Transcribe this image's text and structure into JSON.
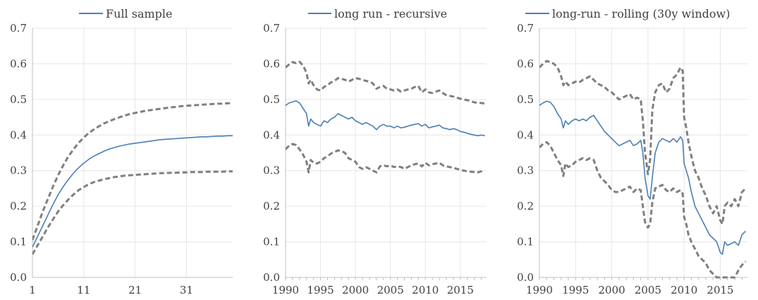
{
  "colors": {
    "estimate": "#4a7fb5",
    "band": "#7f7f7f",
    "grid": "#e6e6e6",
    "axis": "#bfbfbf",
    "text": "#404040"
  },
  "chart_data": [
    {
      "type": "line",
      "title": "",
      "legend": "Full sample",
      "x_kind": "horizon",
      "x_ticks": [
        "1",
        "11",
        "21",
        "31"
      ],
      "x": [
        1,
        2,
        3,
        4,
        5,
        6,
        7,
        8,
        9,
        10,
        11,
        12,
        13,
        14,
        15,
        16,
        17,
        18,
        19,
        20,
        21,
        22,
        23,
        24,
        25,
        26,
        27,
        28,
        29,
        30,
        31,
        32,
        33,
        34,
        35,
        36,
        37,
        38,
        39,
        40
      ],
      "xlim": [
        1,
        40
      ],
      "ylim": [
        0,
        0.7
      ],
      "y_ticks": [
        "0.0",
        "0.1",
        "0.2",
        "0.3",
        "0.4",
        "0.5",
        "0.6",
        "0.7"
      ],
      "grid": true,
      "series": [
        {
          "name": "Full sample",
          "role": "estimate",
          "values": [
            0.085,
            0.115,
            0.145,
            0.175,
            0.205,
            0.232,
            0.255,
            0.275,
            0.293,
            0.308,
            0.321,
            0.332,
            0.341,
            0.348,
            0.355,
            0.361,
            0.365,
            0.369,
            0.372,
            0.375,
            0.377,
            0.379,
            0.381,
            0.383,
            0.385,
            0.387,
            0.388,
            0.389,
            0.39,
            0.391,
            0.392,
            0.393,
            0.394,
            0.395,
            0.395,
            0.396,
            0.397,
            0.397,
            0.398,
            0.398
          ]
        },
        {
          "role": "upper",
          "values": [
            0.105,
            0.145,
            0.185,
            0.22,
            0.255,
            0.287,
            0.315,
            0.34,
            0.36,
            0.378,
            0.393,
            0.406,
            0.416,
            0.425,
            0.433,
            0.439,
            0.445,
            0.45,
            0.455,
            0.459,
            0.462,
            0.465,
            0.468,
            0.47,
            0.472,
            0.474,
            0.476,
            0.478,
            0.479,
            0.481,
            0.482,
            0.483,
            0.484,
            0.485,
            0.486,
            0.487,
            0.488,
            0.488,
            0.489,
            0.49
          ]
        },
        {
          "role": "lower",
          "values": [
            0.065,
            0.09,
            0.115,
            0.14,
            0.163,
            0.185,
            0.203,
            0.219,
            0.233,
            0.245,
            0.254,
            0.262,
            0.268,
            0.272,
            0.276,
            0.279,
            0.282,
            0.284,
            0.286,
            0.287,
            0.288,
            0.289,
            0.29,
            0.291,
            0.292,
            0.293,
            0.293,
            0.294,
            0.294,
            0.295,
            0.295,
            0.296,
            0.296,
            0.296,
            0.297,
            0.297,
            0.297,
            0.297,
            0.298,
            0.298
          ]
        }
      ]
    },
    {
      "type": "line",
      "title": "",
      "legend": "long run - recursive",
      "x_kind": "year",
      "x_ticks": [
        "1990",
        "1995",
        "2000",
        "2005",
        "2010",
        "2015"
      ],
      "x": [
        1990.0,
        1990.5,
        1991.0,
        1991.5,
        1992.0,
        1992.5,
        1993.0,
        1993.3,
        1993.6,
        1994.0,
        1994.5,
        1995.0,
        1995.5,
        1996.0,
        1996.5,
        1997.0,
        1997.5,
        1998.0,
        1998.5,
        1999.0,
        1999.5,
        2000.0,
        2000.5,
        2001.0,
        2001.5,
        2002.0,
        2002.5,
        2003.0,
        2003.5,
        2004.0,
        2004.5,
        2005.0,
        2005.5,
        2006.0,
        2006.5,
        2007.0,
        2007.5,
        2008.0,
        2008.5,
        2009.0,
        2009.5,
        2010.0,
        2010.5,
        2011.0,
        2011.5,
        2012.0,
        2012.5,
        2013.0,
        2013.5,
        2014.0,
        2014.5,
        2015.0,
        2015.5,
        2016.0,
        2016.5,
        2017.0,
        2017.5,
        2018.0,
        2018.5
      ],
      "xlim": [
        1990,
        2018.75
      ],
      "ylim": [
        0,
        0.7
      ],
      "y_ticks": [
        "0.0",
        "0.1",
        "0.2",
        "0.3",
        "0.4",
        "0.5",
        "0.6",
        "0.7"
      ],
      "grid": true,
      "series": [
        {
          "name": "long run - recursive",
          "role": "estimate",
          "values": [
            0.483,
            0.49,
            0.493,
            0.496,
            0.49,
            0.475,
            0.46,
            0.425,
            0.445,
            0.435,
            0.43,
            0.425,
            0.44,
            0.435,
            0.445,
            0.45,
            0.46,
            0.455,
            0.45,
            0.445,
            0.45,
            0.44,
            0.435,
            0.43,
            0.435,
            0.43,
            0.425,
            0.415,
            0.425,
            0.43,
            0.425,
            0.425,
            0.42,
            0.425,
            0.42,
            0.422,
            0.425,
            0.428,
            0.43,
            0.432,
            0.425,
            0.43,
            0.42,
            0.423,
            0.425,
            0.428,
            0.42,
            0.418,
            0.415,
            0.418,
            0.415,
            0.41,
            0.408,
            0.405,
            0.402,
            0.4,
            0.398,
            0.4,
            0.398
          ]
        },
        {
          "role": "upper",
          "values": [
            0.59,
            0.598,
            0.605,
            0.602,
            0.606,
            0.595,
            0.575,
            0.545,
            0.555,
            0.54,
            0.528,
            0.525,
            0.535,
            0.54,
            0.548,
            0.552,
            0.56,
            0.558,
            0.555,
            0.55,
            0.555,
            0.56,
            0.558,
            0.555,
            0.552,
            0.55,
            0.545,
            0.53,
            0.535,
            0.538,
            0.53,
            0.528,
            0.525,
            0.528,
            0.522,
            0.525,
            0.528,
            0.53,
            0.535,
            0.538,
            0.52,
            0.528,
            0.52,
            0.518,
            0.522,
            0.525,
            0.518,
            0.512,
            0.51,
            0.508,
            0.505,
            0.502,
            0.5,
            0.498,
            0.495,
            0.492,
            0.49,
            0.49,
            0.488
          ]
        },
        {
          "role": "lower",
          "values": [
            0.36,
            0.37,
            0.375,
            0.372,
            0.36,
            0.345,
            0.325,
            0.295,
            0.33,
            0.322,
            0.32,
            0.325,
            0.335,
            0.34,
            0.348,
            0.352,
            0.357,
            0.355,
            0.35,
            0.335,
            0.33,
            0.325,
            0.31,
            0.305,
            0.31,
            0.305,
            0.3,
            0.295,
            0.312,
            0.315,
            0.312,
            0.315,
            0.31,
            0.312,
            0.31,
            0.305,
            0.31,
            0.315,
            0.318,
            0.32,
            0.312,
            0.322,
            0.315,
            0.318,
            0.32,
            0.322,
            0.315,
            0.312,
            0.31,
            0.308,
            0.305,
            0.302,
            0.3,
            0.298,
            0.297,
            0.296,
            0.295,
            0.298,
            0.3
          ]
        }
      ]
    },
    {
      "type": "line",
      "title": "",
      "legend": "long-run - rolling (30y window)",
      "x_kind": "year",
      "x_ticks": [
        "1990",
        "1995",
        "2000",
        "2005",
        "2010",
        "2015"
      ],
      "x": [
        1990.0,
        1990.5,
        1991.0,
        1991.5,
        1992.0,
        1992.5,
        1993.0,
        1993.3,
        1993.6,
        1994.0,
        1994.5,
        1995.0,
        1995.5,
        1996.0,
        1996.5,
        1997.0,
        1997.5,
        1998.0,
        1998.5,
        1999.0,
        1999.5,
        2000.0,
        2000.5,
        2001.0,
        2001.5,
        2002.0,
        2002.5,
        2003.0,
        2003.5,
        2004.0,
        2004.3,
        2004.6,
        2005.0,
        2005.3,
        2005.6,
        2006.0,
        2006.5,
        2007.0,
        2007.5,
        2008.0,
        2008.5,
        2009.0,
        2009.5,
        2009.8,
        2010.0,
        2010.3,
        2010.6,
        2011.0,
        2011.5,
        2012.0,
        2012.5,
        2013.0,
        2013.5,
        2014.0,
        2014.5,
        2015.0,
        2015.3,
        2015.6,
        2016.0,
        2016.5,
        2017.0,
        2017.5,
        2018.0,
        2018.5
      ],
      "xlim": [
        1990,
        2018.75
      ],
      "ylim": [
        0,
        0.7
      ],
      "y_ticks": [
        "0.0",
        "0.1",
        "0.2",
        "0.3",
        "0.4",
        "0.5",
        "0.6",
        "0.7"
      ],
      "grid": true,
      "series": [
        {
          "name": "long-run - rolling (30y window)",
          "role": "estimate",
          "values": [
            0.483,
            0.49,
            0.495,
            0.492,
            0.48,
            0.46,
            0.445,
            0.42,
            0.44,
            0.43,
            0.44,
            0.445,
            0.44,
            0.445,
            0.44,
            0.45,
            0.455,
            0.44,
            0.425,
            0.41,
            0.4,
            0.39,
            0.38,
            0.37,
            0.375,
            0.38,
            0.385,
            0.37,
            0.375,
            0.385,
            0.35,
            0.28,
            0.23,
            0.22,
            0.28,
            0.35,
            0.38,
            0.39,
            0.385,
            0.38,
            0.39,
            0.38,
            0.395,
            0.385,
            0.32,
            0.3,
            0.28,
            0.24,
            0.2,
            0.18,
            0.16,
            0.14,
            0.12,
            0.11,
            0.1,
            0.07,
            0.065,
            0.1,
            0.09,
            0.095,
            0.1,
            0.09,
            0.12,
            0.13
          ]
        },
        {
          "role": "upper",
          "values": [
            0.59,
            0.6,
            0.608,
            0.605,
            0.6,
            0.59,
            0.565,
            0.54,
            0.55,
            0.54,
            0.545,
            0.55,
            0.548,
            0.555,
            0.56,
            0.565,
            0.555,
            0.545,
            0.54,
            0.535,
            0.525,
            0.52,
            0.51,
            0.5,
            0.505,
            0.51,
            0.515,
            0.5,
            0.505,
            0.5,
            0.44,
            0.35,
            0.29,
            0.33,
            0.47,
            0.52,
            0.54,
            0.545,
            0.52,
            0.53,
            0.56,
            0.57,
            0.59,
            0.58,
            0.45,
            0.42,
            0.38,
            0.34,
            0.3,
            0.28,
            0.25,
            0.23,
            0.2,
            0.18,
            0.2,
            0.16,
            0.15,
            0.2,
            0.21,
            0.2,
            0.22,
            0.2,
            0.24,
            0.25
          ]
        },
        {
          "role": "lower",
          "values": [
            0.365,
            0.375,
            0.38,
            0.37,
            0.35,
            0.33,
            0.315,
            0.285,
            0.32,
            0.31,
            0.315,
            0.325,
            0.33,
            0.335,
            0.33,
            0.335,
            0.33,
            0.3,
            0.28,
            0.27,
            0.26,
            0.245,
            0.24,
            0.24,
            0.245,
            0.25,
            0.255,
            0.24,
            0.25,
            0.245,
            0.2,
            0.155,
            0.14,
            0.15,
            0.21,
            0.25,
            0.255,
            0.26,
            0.245,
            0.24,
            0.25,
            0.24,
            0.245,
            0.235,
            0.17,
            0.15,
            0.12,
            0.1,
            0.08,
            0.06,
            0.05,
            0.04,
            0.02,
            0.01,
            0.0,
            0.0,
            0.0,
            0.0,
            0.0,
            0.0,
            0.0,
            0.02,
            0.035,
            0.045
          ]
        }
      ]
    }
  ]
}
